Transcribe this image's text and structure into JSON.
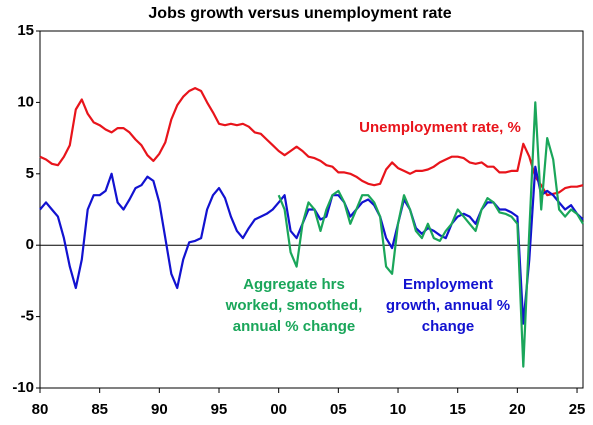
{
  "chart_data": {
    "type": "line",
    "title": "Jobs growth versus unemployment rate",
    "x": [
      1980,
      1980.5,
      1981,
      1981.5,
      1982,
      1982.5,
      1983,
      1983.5,
      1984,
      1984.5,
      1985,
      1985.5,
      1986,
      1986.5,
      1987,
      1987.5,
      1988,
      1988.5,
      1989,
      1989.5,
      1990,
      1990.5,
      1991,
      1991.5,
      1992,
      1992.5,
      1993,
      1993.5,
      1994,
      1994.5,
      1995,
      1995.5,
      1996,
      1996.5,
      1997,
      1997.5,
      1998,
      1998.5,
      1999,
      1999.5,
      2000,
      2000.5,
      2001,
      2001.5,
      2002,
      2002.5,
      2003,
      2003.5,
      2004,
      2004.5,
      2005,
      2005.5,
      2006,
      2006.5,
      2007,
      2007.5,
      2008,
      2008.5,
      2009,
      2009.5,
      2010,
      2010.5,
      2011,
      2011.5,
      2012,
      2012.5,
      2013,
      2013.5,
      2014,
      2014.5,
      2015,
      2015.5,
      2016,
      2016.5,
      2017,
      2017.5,
      2018,
      2018.5,
      2019,
      2019.5,
      2020,
      2020.5,
      2021,
      2021.5,
      2022,
      2022.5,
      2023,
      2023.5,
      2024,
      2024.5,
      2025,
      2025.5
    ],
    "series": [
      {
        "name": "Unemployment rate, %",
        "color": "#e8141b",
        "values": [
          6.2,
          6.0,
          5.7,
          5.6,
          6.2,
          7.0,
          9.5,
          10.2,
          9.2,
          8.6,
          8.4,
          8.1,
          7.9,
          8.2,
          8.2,
          7.9,
          7.4,
          7.0,
          6.3,
          5.9,
          6.4,
          7.2,
          8.8,
          9.8,
          10.4,
          10.8,
          11.0,
          10.8,
          10.0,
          9.3,
          8.5,
          8.4,
          8.5,
          8.4,
          8.5,
          8.3,
          7.9,
          7.8,
          7.4,
          7.0,
          6.6,
          6.3,
          6.6,
          6.9,
          6.6,
          6.2,
          6.1,
          5.9,
          5.6,
          5.5,
          5.1,
          5.1,
          5.0,
          4.8,
          4.5,
          4.3,
          4.2,
          4.3,
          5.3,
          5.8,
          5.4,
          5.2,
          5.0,
          5.2,
          5.2,
          5.3,
          5.5,
          5.8,
          6.0,
          6.2,
          6.2,
          6.1,
          5.8,
          5.7,
          5.8,
          5.5,
          5.5,
          5.1,
          5.1,
          5.2,
          5.2,
          7.1,
          6.2,
          4.8,
          4.2,
          3.5,
          3.6,
          3.7,
          4.0,
          4.1,
          4.1,
          4.2
        ]
      },
      {
        "name": "Employment growth, annual % change",
        "color": "#1212d0",
        "values": [
          2.5,
          3.0,
          2.5,
          2.0,
          0.5,
          -1.5,
          -3.0,
          -1.0,
          2.5,
          3.5,
          3.5,
          3.8,
          5.0,
          3.0,
          2.5,
          3.2,
          4.0,
          4.2,
          4.8,
          4.5,
          3.0,
          0.5,
          -2.0,
          -3.0,
          -1.0,
          0.2,
          0.3,
          0.5,
          2.5,
          3.5,
          4.0,
          3.3,
          2.0,
          1.0,
          0.5,
          1.2,
          1.8,
          2.0,
          2.2,
          2.5,
          3.0,
          3.5,
          1.0,
          0.5,
          1.5,
          2.5,
          2.5,
          1.8,
          2.0,
          3.5,
          3.5,
          3.0,
          2.0,
          2.5,
          3.0,
          3.2,
          2.8,
          2.0,
          0.5,
          -0.2,
          1.5,
          3.2,
          2.5,
          1.2,
          0.8,
          1.2,
          1.0,
          0.7,
          0.5,
          1.5,
          2.0,
          2.2,
          2.0,
          1.5,
          2.5,
          3.0,
          3.0,
          2.5,
          2.5,
          2.3,
          2.0,
          -5.5,
          -1.0,
          5.5,
          3.5,
          3.8,
          3.5,
          3.0,
          2.5,
          2.8,
          2.2,
          1.8
        ]
      },
      {
        "name": "Aggregate hrs worked, smoothed, annual % change",
        "color": "#1aa65a",
        "values": [
          null,
          null,
          null,
          null,
          null,
          null,
          null,
          null,
          null,
          null,
          null,
          null,
          null,
          null,
          null,
          null,
          null,
          null,
          null,
          null,
          null,
          null,
          null,
          null,
          null,
          null,
          null,
          null,
          null,
          null,
          null,
          null,
          null,
          null,
          null,
          null,
          null,
          null,
          null,
          null,
          3.5,
          2.5,
          -0.5,
          -1.5,
          1.5,
          3.0,
          2.5,
          1.0,
          2.5,
          3.5,
          3.8,
          3.0,
          1.5,
          2.5,
          3.5,
          3.5,
          3.0,
          2.0,
          -1.5,
          -2.0,
          1.5,
          3.5,
          2.5,
          1.0,
          0.5,
          1.5,
          0.5,
          0.3,
          1.0,
          1.5,
          2.5,
          2.0,
          1.5,
          1.0,
          2.5,
          3.3,
          3.0,
          2.3,
          2.2,
          2.0,
          1.5,
          -8.5,
          1.0,
          10.0,
          2.5,
          7.5,
          6.0,
          2.5,
          2.0,
          2.5,
          2.2,
          1.5
        ]
      }
    ],
    "annotations": [
      [
        "Unemployment rate, %"
      ],
      [
        "Aggregate hrs",
        "worked, smoothed,",
        "annual % change"
      ],
      [
        "Employment",
        "growth, annual %",
        "change"
      ]
    ],
    "xlim": [
      1980,
      2025.5
    ],
    "xticks": [
      {
        "value": 1980,
        "label": "80"
      },
      {
        "value": 1985,
        "label": "85"
      },
      {
        "value": 1990,
        "label": "90"
      },
      {
        "value": 1995,
        "label": "95"
      },
      {
        "value": 2000,
        "label": "00"
      },
      {
        "value": 2005,
        "label": "05"
      },
      {
        "value": 2010,
        "label": "10"
      },
      {
        "value": 2015,
        "label": "15"
      },
      {
        "value": 2020,
        "label": "20"
      },
      {
        "value": 2025,
        "label": "25"
      }
    ],
    "ylim": [
      -10,
      15
    ],
    "yticks": [
      -10,
      -5,
      0,
      5,
      10,
      15
    ]
  }
}
